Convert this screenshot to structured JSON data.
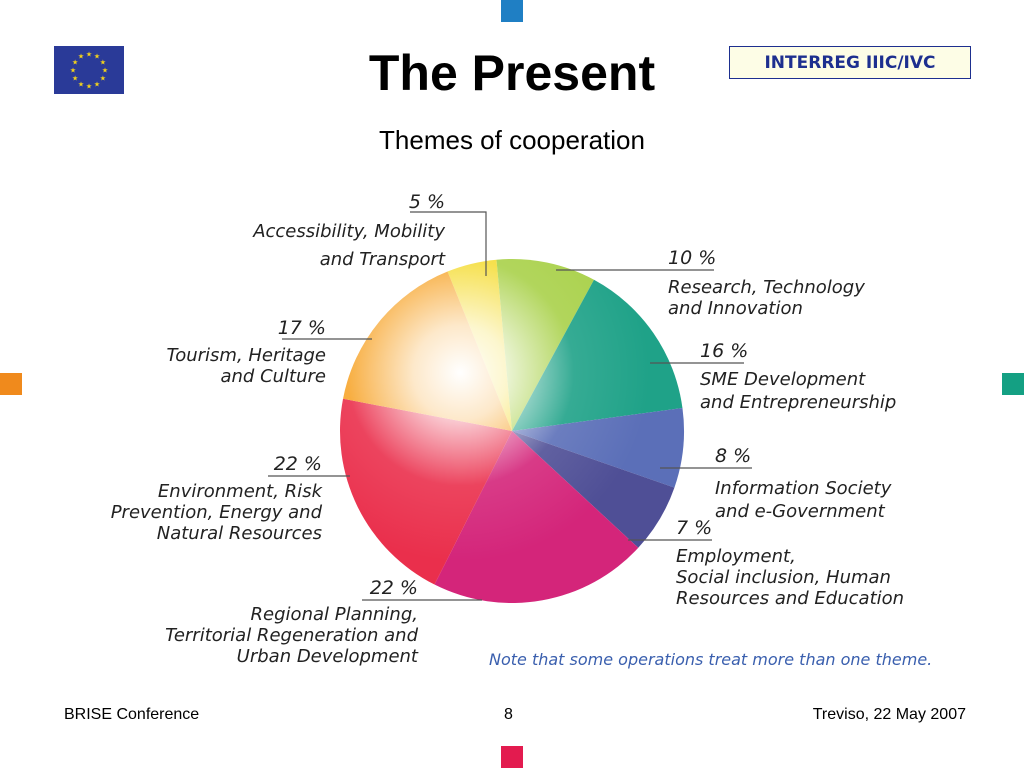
{
  "header": {
    "title": "The Present",
    "subtitle": "Themes of cooperation",
    "program_badge": "INTERREG IIIC/IVC"
  },
  "colors": {
    "accent_top": "#1f7fc4",
    "accent_left": "#f08a1c",
    "accent_right": "#14a083",
    "accent_bottom": "#e31b4f",
    "eu_blue": "#2a3a98",
    "eu_star": "#f3d21b",
    "badge_border": "#1d2f8f"
  },
  "chart_data": {
    "type": "pie",
    "note": "Note that some operations treat more than one theme.",
    "slices": [
      {
        "pct_label": "5 %",
        "value": 5,
        "label_lines": [
          "Accessibility, Mobility",
          "and Transport"
        ],
        "color": "#f5dd3a"
      },
      {
        "pct_label": "10 %",
        "value": 10,
        "label_lines": [
          "Research, Technology",
          "and Innovation"
        ],
        "color": "#a9d14a"
      },
      {
        "pct_label": "16 %",
        "value": 16,
        "label_lines": [
          "SME Development",
          "and Entrepreneurship"
        ],
        "color": "#1fa288"
      },
      {
        "pct_label": "8 %",
        "value": 8,
        "label_lines": [
          "Information Society",
          "and e-Government"
        ],
        "color": "#5b6fb8"
      },
      {
        "pct_label": "7 %",
        "value": 7,
        "label_lines": [
          "Employment,",
          "Social inclusion, Human",
          "Resources and Education"
        ],
        "color": "#4f4f96"
      },
      {
        "pct_label": "22 %",
        "value": 22,
        "label_lines": [
          "Regional Planning,",
          "Territorial Regeneration and",
          "Urban Development"
        ],
        "color": "#d4257a"
      },
      {
        "pct_label": "22 %",
        "value": 22,
        "label_lines": [
          "Environment, Risk",
          "Prevention, Energy and",
          "Natural Resources"
        ],
        "color": "#ea2f4c"
      },
      {
        "pct_label": "17 %",
        "value": 17,
        "label_lines": [
          "Tourism, Heritage",
          "and Culture"
        ],
        "color": "#f7a52c"
      }
    ]
  },
  "footer": {
    "left": "BRISE Conference",
    "center": "8",
    "right": "Treviso, 22 May 2007"
  }
}
